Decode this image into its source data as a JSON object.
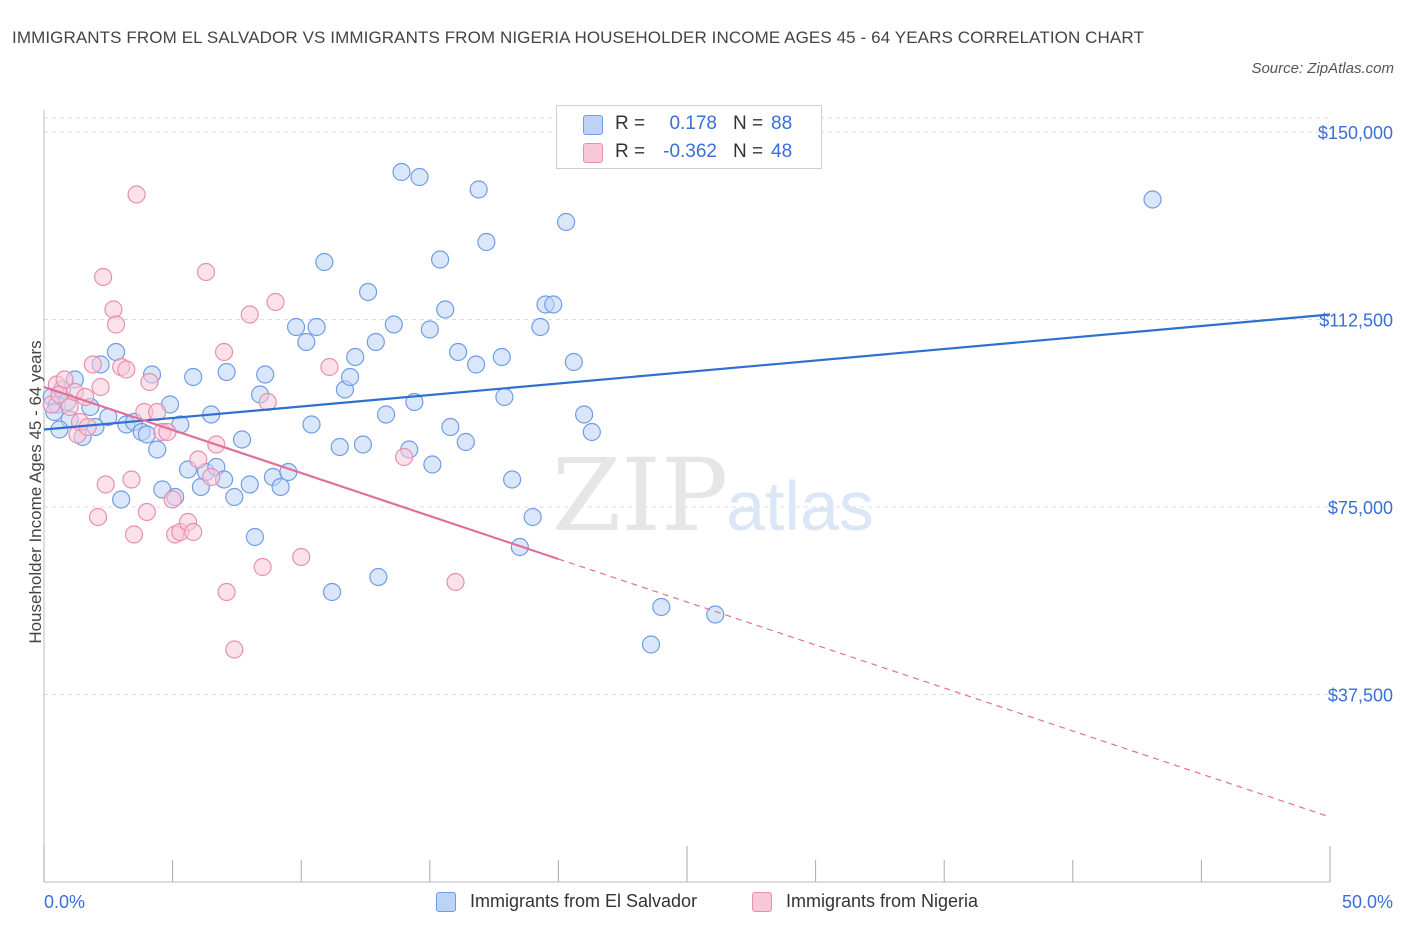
{
  "title": "IMMIGRANTS FROM EL SALVADOR VS IMMIGRANTS FROM NIGERIA HOUSEHOLDER INCOME AGES 45 - 64 YEARS CORRELATION CHART",
  "source": "Source: ZipAtlas.com",
  "watermark": {
    "zip": "ZIP",
    "atlas": "atlas"
  },
  "legend": {
    "r_label": "R =",
    "n_label": "N =",
    "items": [
      {
        "r": "0.178",
        "n": "88"
      },
      {
        "r": "-0.362",
        "n": "48"
      }
    ]
  },
  "colors": {
    "el_salvador": "#6f9ce6",
    "el_salvador_fill": "#bcd3f5",
    "el_salvador_line": "#2f6fcf",
    "nigeria": "#e98fae",
    "nigeria_fill": "#f8c8d8",
    "nigeria_line": "#e0709a",
    "tick_label": "#3a6fd8",
    "grid": "#dddddd"
  },
  "chart_data": {
    "type": "scatter",
    "title": "IMMIGRANTS FROM EL SALVADOR VS IMMIGRANTS FROM NIGERIA HOUSEHOLDER INCOME AGES 45 - 64 YEARS CORRELATION CHART",
    "xlabel": "",
    "ylabel": "Householder Income Ages 45 - 64 years",
    "xlim": [
      0,
      50
    ],
    "ylim": [
      0,
      150000
    ],
    "x_tick_labels": [
      "0.0%",
      "50.0%"
    ],
    "y_ticks": [
      37500,
      75000,
      112500,
      150000
    ],
    "y_tick_labels": [
      "$37,500",
      "$75,000",
      "$112,500",
      "$150,000"
    ],
    "grid": true,
    "legend_position": "top-center",
    "series": [
      {
        "name": "Immigrants from El Salvador",
        "r": 0.178,
        "n": 88,
        "trend": {
          "x": [
            0,
            50
          ],
          "y": [
            90500,
            113500
          ],
          "dashed_from": null
        },
        "points": [
          [
            0.3,
            97000
          ],
          [
            0.5,
            95500
          ],
          [
            0.7,
            98500
          ],
          [
            0.9,
            96000
          ],
          [
            0.4,
            94000
          ],
          [
            1.0,
            92500
          ],
          [
            1.2,
            100500
          ],
          [
            1.5,
            89000
          ],
          [
            1.8,
            95000
          ],
          [
            2.0,
            91000
          ],
          [
            2.2,
            103500
          ],
          [
            2.5,
            93000
          ],
          [
            2.8,
            106000
          ],
          [
            3.0,
            76500
          ],
          [
            3.2,
            91500
          ],
          [
            3.5,
            92000
          ],
          [
            3.8,
            90000
          ],
          [
            4.0,
            89500
          ],
          [
            4.2,
            101500
          ],
          [
            4.4,
            86500
          ],
          [
            4.6,
            78500
          ],
          [
            4.9,
            95500
          ],
          [
            5.1,
            77000
          ],
          [
            5.3,
            91500
          ],
          [
            5.6,
            82500
          ],
          [
            5.8,
            101000
          ],
          [
            6.1,
            79000
          ],
          [
            6.3,
            82000
          ],
          [
            6.5,
            93500
          ],
          [
            6.7,
            83000
          ],
          [
            7.0,
            80500
          ],
          [
            7.1,
            102000
          ],
          [
            7.4,
            77000
          ],
          [
            7.7,
            88500
          ],
          [
            8.0,
            79500
          ],
          [
            8.2,
            69000
          ],
          [
            8.4,
            97500
          ],
          [
            8.6,
            101500
          ],
          [
            8.9,
            81000
          ],
          [
            9.2,
            79000
          ],
          [
            9.5,
            82000
          ],
          [
            9.8,
            111000
          ],
          [
            10.2,
            108000
          ],
          [
            10.4,
            91500
          ],
          [
            10.6,
            111000
          ],
          [
            10.9,
            124000
          ],
          [
            11.2,
            58000
          ],
          [
            11.5,
            87000
          ],
          [
            11.7,
            98500
          ],
          [
            11.9,
            101000
          ],
          [
            12.1,
            105000
          ],
          [
            12.4,
            87500
          ],
          [
            12.6,
            118000
          ],
          [
            12.9,
            108000
          ],
          [
            13.0,
            61000
          ],
          [
            13.3,
            93500
          ],
          [
            13.6,
            111500
          ],
          [
            13.9,
            142000
          ],
          [
            14.2,
            86500
          ],
          [
            14.4,
            96000
          ],
          [
            14.6,
            141000
          ],
          [
            15.0,
            110500
          ],
          [
            15.1,
            83500
          ],
          [
            15.4,
            124500
          ],
          [
            15.6,
            114500
          ],
          [
            15.8,
            91000
          ],
          [
            16.1,
            106000
          ],
          [
            16.4,
            88000
          ],
          [
            16.8,
            103500
          ],
          [
            16.9,
            138500
          ],
          [
            17.2,
            128000
          ],
          [
            17.8,
            105000
          ],
          [
            17.9,
            97000
          ],
          [
            18.2,
            80500
          ],
          [
            18.5,
            67000
          ],
          [
            19.0,
            73000
          ],
          [
            19.3,
            111000
          ],
          [
            19.5,
            115500
          ],
          [
            19.8,
            115500
          ],
          [
            20.3,
            132000
          ],
          [
            20.6,
            104000
          ],
          [
            21.0,
            93500
          ],
          [
            21.3,
            90000
          ],
          [
            23.6,
            47500
          ],
          [
            24.0,
            55000
          ],
          [
            26.1,
            53500
          ],
          [
            43.1,
            136500
          ],
          [
            0.6,
            90500
          ]
        ]
      },
      {
        "name": "Immigrants from Nigeria",
        "r": -0.362,
        "n": 48,
        "trend": {
          "x": [
            0,
            50
          ],
          "y": [
            99000,
            13000
          ],
          "dashed_from": 20
        },
        "points": [
          [
            0.3,
            95500
          ],
          [
            0.5,
            99500
          ],
          [
            0.6,
            97500
          ],
          [
            0.8,
            100500
          ],
          [
            1.0,
            95000
          ],
          [
            1.2,
            98000
          ],
          [
            1.3,
            89500
          ],
          [
            1.4,
            92000
          ],
          [
            1.6,
            97000
          ],
          [
            1.7,
            91000
          ],
          [
            1.9,
            103500
          ],
          [
            2.1,
            73000
          ],
          [
            2.2,
            99000
          ],
          [
            2.3,
            121000
          ],
          [
            2.4,
            79500
          ],
          [
            2.7,
            114500
          ],
          [
            2.8,
            111500
          ],
          [
            3.0,
            103000
          ],
          [
            3.2,
            102500
          ],
          [
            3.4,
            80500
          ],
          [
            3.5,
            69500
          ],
          [
            3.6,
            137500
          ],
          [
            3.9,
            94000
          ],
          [
            4.0,
            74000
          ],
          [
            4.1,
            100000
          ],
          [
            4.4,
            94000
          ],
          [
            4.6,
            90000
          ],
          [
            4.8,
            90000
          ],
          [
            5.0,
            76500
          ],
          [
            5.1,
            69500
          ],
          [
            5.3,
            70000
          ],
          [
            5.6,
            72000
          ],
          [
            5.8,
            70000
          ],
          [
            6.0,
            84500
          ],
          [
            6.3,
            122000
          ],
          [
            6.5,
            81000
          ],
          [
            6.7,
            87500
          ],
          [
            7.0,
            106000
          ],
          [
            7.1,
            58000
          ],
          [
            7.4,
            46500
          ],
          [
            8.0,
            113500
          ],
          [
            8.5,
            63000
          ],
          [
            8.7,
            96000
          ],
          [
            9.0,
            116000
          ],
          [
            10.0,
            65000
          ],
          [
            11.1,
            103000
          ],
          [
            14.0,
            85000
          ],
          [
            16.0,
            60000
          ]
        ]
      }
    ]
  }
}
